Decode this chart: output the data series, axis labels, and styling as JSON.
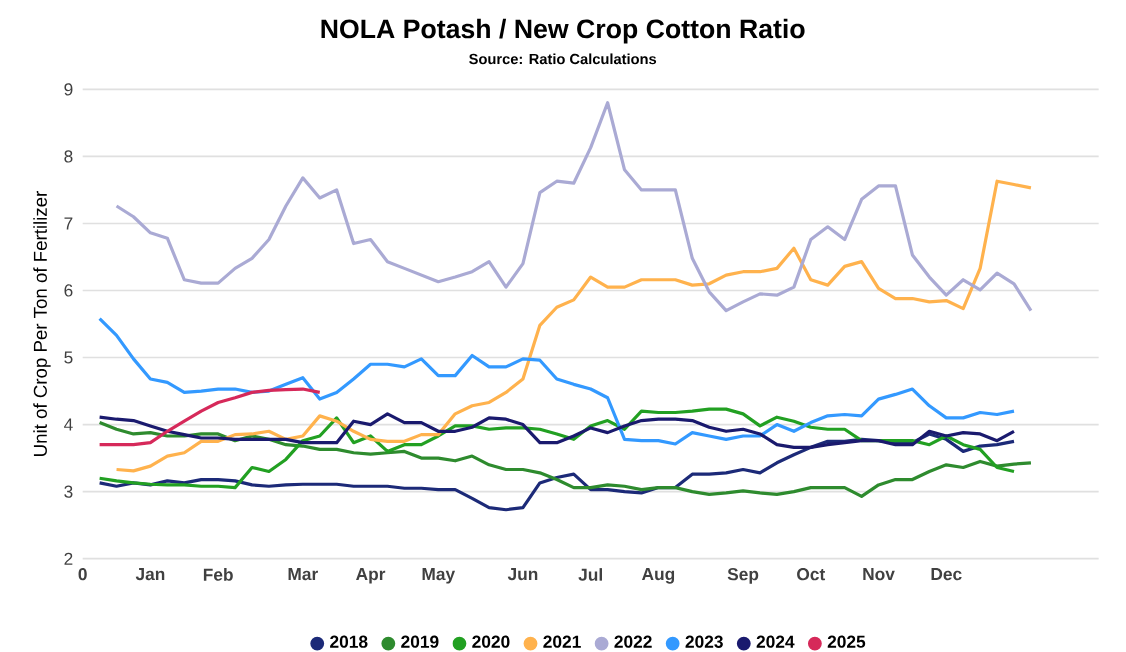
{
  "chart_data": {
    "type": "line",
    "title": "NOLA Potash / New Crop Cotton Ratio",
    "subtitle": "Source: Ratio Calculations",
    "ylabel": "Unit of Crop Per Ton of Fertilizer",
    "categories": [
      "0",
      null,
      null,
      null,
      "Jan",
      null,
      null,
      null,
      "Feb",
      null,
      null,
      null,
      null,
      "Mar",
      null,
      null,
      null,
      "Apr",
      null,
      null,
      null,
      "May",
      null,
      null,
      null,
      null,
      "Jun",
      null,
      null,
      null,
      "Jul",
      null,
      null,
      null,
      "Aug",
      null,
      null,
      null,
      null,
      "Sep",
      null,
      null,
      null,
      "Oct",
      null,
      null,
      null,
      "Nov",
      null,
      null,
      null,
      "Dec",
      null,
      null,
      null,
      null,
      null,
      null,
      null,
      null,
      null
    ],
    "ylim": [
      2,
      9
    ],
    "yticks": [
      2,
      3,
      4,
      5,
      6,
      7,
      8,
      9
    ],
    "grid": "y",
    "legend": "bottom",
    "marker": "none",
    "line_style": "solid",
    "series": [
      {
        "name": "2018",
        "color": "#1c2a78",
        "values": [
          null,
          3.13,
          3.08,
          3.13,
          3.1,
          3.16,
          3.13,
          3.18,
          3.18,
          3.16,
          3.1,
          3.08,
          3.1,
          3.11,
          3.11,
          3.11,
          3.08,
          3.08,
          3.08,
          3.05,
          3.05,
          3.03,
          3.03,
          2.9,
          2.76,
          2.73,
          2.76,
          3.13,
          3.21,
          3.26,
          3.03,
          3.03,
          3.0,
          2.98,
          3.06,
          3.06,
          3.26,
          3.26,
          3.28,
          3.33,
          3.28,
          3.43,
          3.55,
          3.66,
          3.75,
          3.75,
          3.78,
          3.76,
          3.73,
          3.73,
          3.86,
          3.78,
          3.6,
          3.68,
          3.7,
          3.75,
          null,
          null,
          null,
          null,
          null
        ]
      },
      {
        "name": "2019",
        "color": "#2e8b2e",
        "values": [
          null,
          4.03,
          3.93,
          3.86,
          3.88,
          3.83,
          3.83,
          3.86,
          3.86,
          3.76,
          3.83,
          3.78,
          3.7,
          3.68,
          3.63,
          3.63,
          3.58,
          3.56,
          3.58,
          3.6,
          3.5,
          3.5,
          3.46,
          3.53,
          3.4,
          3.33,
          3.33,
          3.28,
          3.18,
          3.06,
          3.06,
          3.1,
          3.08,
          3.03,
          3.06,
          3.06,
          3.0,
          2.96,
          2.98,
          3.01,
          2.98,
          2.96,
          3.0,
          3.06,
          3.06,
          3.06,
          2.93,
          3.1,
          3.18,
          3.18,
          3.3,
          3.4,
          3.36,
          3.45,
          3.38,
          3.41,
          3.43,
          null,
          null,
          null,
          null
        ]
      },
      {
        "name": "2020",
        "color": "#22a022",
        "values": [
          null,
          3.2,
          3.16,
          3.13,
          3.11,
          3.1,
          3.1,
          3.08,
          3.08,
          3.06,
          3.36,
          3.3,
          3.48,
          3.76,
          3.83,
          4.1,
          3.73,
          3.83,
          3.6,
          3.7,
          3.7,
          3.83,
          3.98,
          3.98,
          3.93,
          3.95,
          3.95,
          3.93,
          3.86,
          3.78,
          3.98,
          4.06,
          3.93,
          4.2,
          4.18,
          4.18,
          4.2,
          4.23,
          4.23,
          4.16,
          3.98,
          4.11,
          4.05,
          3.96,
          3.93,
          3.93,
          3.76,
          3.76,
          3.76,
          3.76,
          3.7,
          3.83,
          3.7,
          3.63,
          3.36,
          3.3,
          null,
          null,
          null,
          null,
          null
        ]
      },
      {
        "name": "2021",
        "color": "#ffb24d",
        "values": [
          null,
          null,
          3.33,
          3.31,
          3.38,
          3.53,
          3.58,
          3.75,
          3.75,
          3.85,
          3.86,
          3.9,
          3.78,
          3.83,
          4.13,
          4.05,
          3.9,
          3.78,
          3.75,
          3.75,
          3.85,
          3.85,
          4.16,
          4.28,
          4.33,
          4.48,
          4.68,
          5.48,
          5.75,
          5.86,
          6.2,
          6.05,
          6.05,
          6.16,
          6.16,
          6.16,
          6.08,
          6.1,
          6.23,
          6.28,
          6.28,
          6.33,
          6.63,
          6.16,
          6.08,
          6.36,
          6.43,
          6.03,
          5.88,
          5.88,
          5.83,
          5.85,
          5.73,
          6.33,
          7.63,
          7.58,
          7.53,
          null,
          null,
          null,
          null
        ]
      },
      {
        "name": "2022",
        "color": "#aaaad4",
        "values": [
          null,
          null,
          7.26,
          7.1,
          6.86,
          6.78,
          6.16,
          6.11,
          6.11,
          6.33,
          6.48,
          6.76,
          7.26,
          7.68,
          7.38,
          7.5,
          6.7,
          6.76,
          6.43,
          6.33,
          6.23,
          6.13,
          6.2,
          6.28,
          6.43,
          6.05,
          6.4,
          7.46,
          7.63,
          7.6,
          8.13,
          8.8,
          7.8,
          7.5,
          7.5,
          7.5,
          6.48,
          5.98,
          5.7,
          5.83,
          5.95,
          5.93,
          6.05,
          6.76,
          6.95,
          6.76,
          7.36,
          7.56,
          7.56,
          6.53,
          6.2,
          5.93,
          6.16,
          6.01,
          6.26,
          6.1,
          5.7,
          null,
          null,
          null,
          null
        ]
      },
      {
        "name": "2023",
        "color": "#3399ff",
        "values": [
          null,
          5.58,
          5.33,
          4.98,
          4.68,
          4.63,
          4.48,
          4.5,
          4.53,
          4.53,
          4.48,
          4.5,
          4.6,
          4.7,
          4.38,
          4.48,
          4.68,
          4.9,
          4.9,
          4.86,
          4.98,
          4.73,
          4.73,
          5.03,
          4.86,
          4.86,
          4.98,
          4.96,
          4.68,
          4.6,
          4.53,
          4.4,
          3.78,
          3.76,
          3.76,
          3.71,
          3.88,
          3.83,
          3.78,
          3.83,
          3.83,
          4.0,
          3.9,
          4.03,
          4.13,
          4.15,
          4.13,
          4.38,
          4.45,
          4.53,
          4.28,
          4.1,
          4.1,
          4.18,
          4.15,
          4.2,
          null,
          null,
          null,
          null,
          null
        ]
      },
      {
        "name": "2024",
        "color": "#1a1a6e",
        "values": [
          null,
          4.11,
          4.08,
          4.06,
          3.98,
          3.9,
          3.85,
          3.8,
          3.8,
          3.78,
          3.78,
          3.78,
          3.78,
          3.73,
          3.73,
          3.73,
          4.05,
          4.0,
          4.16,
          4.03,
          4.03,
          3.9,
          3.9,
          3.96,
          4.1,
          4.08,
          4.0,
          3.73,
          3.73,
          3.83,
          3.95,
          3.88,
          3.98,
          4.06,
          4.08,
          4.08,
          4.06,
          3.96,
          3.9,
          3.93,
          3.86,
          3.7,
          3.66,
          3.66,
          3.7,
          3.73,
          3.76,
          3.76,
          3.7,
          3.7,
          3.9,
          3.83,
          3.88,
          3.86,
          3.76,
          3.9,
          null,
          null,
          null,
          null,
          null
        ]
      },
      {
        "name": "2025",
        "color": "#d6295a",
        "values": [
          null,
          3.7,
          3.7,
          3.7,
          3.73,
          3.9,
          4.05,
          4.2,
          4.33,
          4.4,
          4.48,
          4.51,
          4.52,
          4.53,
          4.48,
          null,
          null,
          null,
          null,
          null,
          null,
          null,
          null,
          null,
          null,
          null,
          null,
          null,
          null,
          null,
          null,
          null,
          null,
          null,
          null,
          null,
          null,
          null,
          null,
          null,
          null,
          null,
          null,
          null,
          null,
          null,
          null,
          null,
          null,
          null,
          null,
          null,
          null,
          null,
          null,
          null,
          null,
          null,
          null,
          null,
          null
        ]
      }
    ]
  }
}
